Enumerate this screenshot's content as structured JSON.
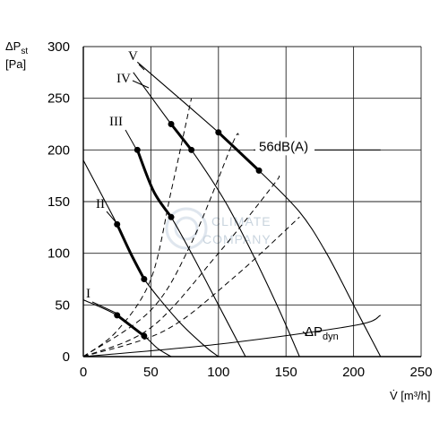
{
  "chart_data": {
    "type": "line",
    "xlabel": "V̇ [m³/h]",
    "ylabel_line1": "ΔP",
    "ylabel_sub": "st",
    "ylabel_line2": "[Pa]",
    "xlim": [
      0,
      250
    ],
    "ylim": [
      0,
      300
    ],
    "xticks": [
      0,
      50,
      100,
      150,
      200,
      250
    ],
    "yticks": [
      0,
      50,
      100,
      150,
      200,
      250,
      300
    ],
    "grid": true,
    "fan_curves": [
      {
        "name": "I",
        "points": [
          [
            0,
            55
          ],
          [
            25,
            40
          ],
          [
            45,
            20
          ],
          [
            55,
            8
          ],
          [
            65,
            0
          ]
        ]
      },
      {
        "name": "II",
        "points": [
          [
            0,
            190
          ],
          [
            25,
            128
          ],
          [
            35,
            100
          ],
          [
            45,
            75
          ],
          [
            70,
            35
          ],
          [
            90,
            10
          ],
          [
            100,
            0
          ]
        ]
      },
      {
        "name": "III",
        "points": [
          [
            40,
            200
          ],
          [
            52,
            160
          ],
          [
            65,
            135
          ],
          [
            80,
            100
          ],
          [
            100,
            50
          ],
          [
            120,
            0
          ]
        ]
      },
      {
        "name": "IV",
        "points": [
          [
            37,
            275
          ],
          [
            65,
            225
          ],
          [
            80,
            200
          ],
          [
            105,
            150
          ],
          [
            125,
            100
          ],
          [
            145,
            45
          ],
          [
            160,
            0
          ]
        ]
      },
      {
        "name": "V",
        "points": [
          [
            40,
            285
          ],
          [
            100,
            217
          ],
          [
            130,
            180
          ],
          [
            160,
            140
          ],
          [
            180,
            100
          ],
          [
            200,
            50
          ],
          [
            220,
            0
          ]
        ]
      }
    ],
    "highlighted_segments": [
      {
        "curve": "I",
        "from": [
          25,
          40
        ],
        "to": [
          45,
          20
        ]
      },
      {
        "curve": "II",
        "from": [
          25,
          128
        ],
        "to": [
          45,
          75
        ]
      },
      {
        "curve": "III",
        "from": [
          40,
          200
        ],
        "to": [
          65,
          135
        ]
      },
      {
        "curve": "IV",
        "from": [
          65,
          225
        ],
        "to": [
          80,
          200
        ]
      },
      {
        "curve": "V",
        "from": [
          100,
          217
        ],
        "to": [
          130,
          180
        ]
      }
    ],
    "system_curves": [
      {
        "points": [
          [
            0,
            0
          ],
          [
            25,
            25
          ],
          [
            50,
            75
          ],
          [
            65,
            160
          ],
          [
            80,
            250
          ]
        ]
      },
      {
        "points": [
          [
            0,
            0
          ],
          [
            50,
            45
          ],
          [
            80,
            110
          ],
          [
            110,
            205
          ],
          [
            115,
            215
          ]
        ]
      },
      {
        "points": [
          [
            0,
            0
          ],
          [
            50,
            28
          ],
          [
            100,
            100
          ],
          [
            140,
            165
          ],
          [
            145,
            175
          ]
        ]
      },
      {
        "points": [
          [
            0,
            0
          ],
          [
            60,
            25
          ],
          [
            110,
            75
          ],
          [
            160,
            135
          ]
        ]
      }
    ],
    "dynamic_pressure": {
      "label": "ΔP",
      "label_sub": "dyn",
      "points": [
        [
          0,
          0
        ],
        [
          100,
          12
        ],
        [
          200,
          30
        ],
        [
          220,
          40
        ]
      ]
    },
    "annotation": {
      "text": "56dB(A)",
      "anchor": [
        126,
        200
      ]
    }
  }
}
